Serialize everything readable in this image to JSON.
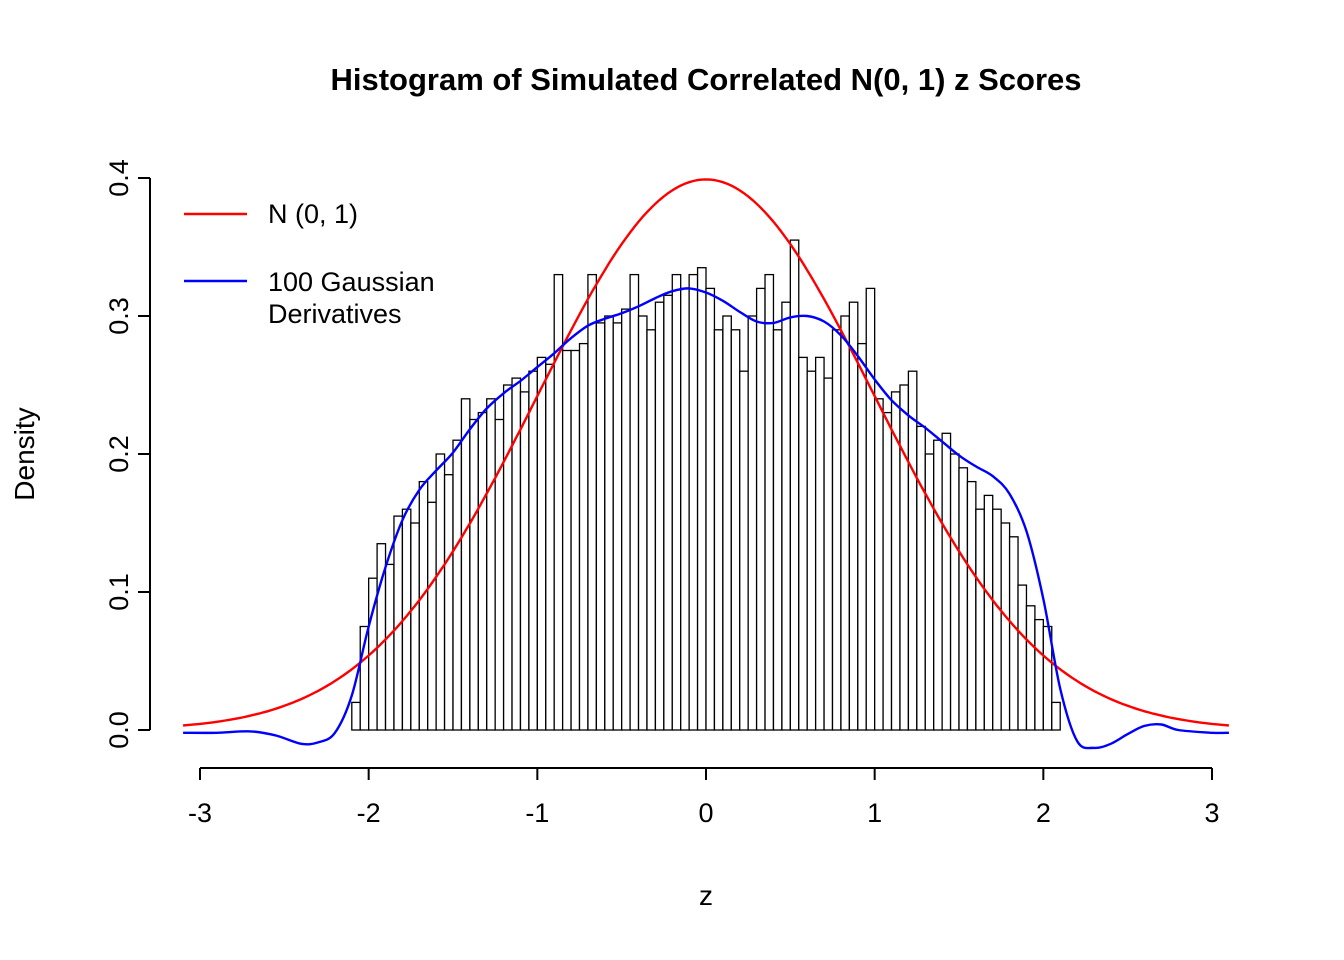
{
  "chart_data": {
    "type": "histogram",
    "title": "Histogram of Simulated Correlated N(0, 1) z Scores",
    "xlabel": "z",
    "ylabel": "Density",
    "xlim": [
      -3.1,
      3.1
    ],
    "ylim": [
      0.0,
      0.4
    ],
    "background_color": "#FFFFFF",
    "grid": false,
    "legend_position": "top-left",
    "x_ticks": {
      "values": [
        -3,
        -2,
        -1,
        0,
        1,
        2,
        3
      ],
      "labels": [
        "-3",
        "-2",
        "-1",
        "0",
        "1",
        "2",
        "3"
      ]
    },
    "y_ticks": {
      "values": [
        0.0,
        0.1,
        0.2,
        0.3,
        0.4
      ],
      "labels": [
        "0.0",
        "0.1",
        "0.2",
        "0.3",
        "0.4"
      ]
    },
    "histogram": {
      "bin_start": -2.1,
      "bin_width": 0.05,
      "bar_fill": "#FFFFFF",
      "bar_stroke": "#000000",
      "densities": [
        0.02,
        0.075,
        0.11,
        0.135,
        0.12,
        0.155,
        0.16,
        0.15,
        0.18,
        0.165,
        0.2,
        0.185,
        0.21,
        0.24,
        0.225,
        0.23,
        0.24,
        0.225,
        0.25,
        0.255,
        0.245,
        0.26,
        0.27,
        0.265,
        0.33,
        0.275,
        0.275,
        0.28,
        0.33,
        0.295,
        0.3,
        0.295,
        0.305,
        0.33,
        0.3,
        0.29,
        0.31,
        0.315,
        0.33,
        0.32,
        0.33,
        0.335,
        0.32,
        0.29,
        0.3,
        0.29,
        0.26,
        0.3,
        0.32,
        0.33,
        0.29,
        0.31,
        0.355,
        0.27,
        0.26,
        0.27,
        0.255,
        0.29,
        0.3,
        0.31,
        0.28,
        0.32,
        0.24,
        0.23,
        0.245,
        0.25,
        0.26,
        0.22,
        0.2,
        0.21,
        0.215,
        0.2,
        0.19,
        0.18,
        0.16,
        0.17,
        0.16,
        0.15,
        0.14,
        0.105,
        0.09,
        0.08,
        0.075,
        0.02
      ]
    },
    "normal_curve": {
      "label": "N (0, 1)",
      "mean": 0,
      "sd": 1,
      "color": "#FF0000"
    },
    "gd_curve": {
      "label": "100 Gaussian",
      "label2": "Derivatives",
      "color": "#0000FF",
      "points": [
        [
          -3.1,
          -0.002
        ],
        [
          -2.9,
          -0.002
        ],
        [
          -2.7,
          -0.001
        ],
        [
          -2.55,
          -0.004
        ],
        [
          -2.4,
          -0.01
        ],
        [
          -2.3,
          -0.009
        ],
        [
          -2.2,
          -0.002
        ],
        [
          -2.1,
          0.025
        ],
        [
          -2.0,
          0.075
        ],
        [
          -1.9,
          0.118
        ],
        [
          -1.8,
          0.152
        ],
        [
          -1.7,
          0.174
        ],
        [
          -1.6,
          0.188
        ],
        [
          -1.5,
          0.201
        ],
        [
          -1.4,
          0.218
        ],
        [
          -1.3,
          0.233
        ],
        [
          -1.2,
          0.244
        ],
        [
          -1.1,
          0.253
        ],
        [
          -1.0,
          0.263
        ],
        [
          -0.9,
          0.273
        ],
        [
          -0.8,
          0.284
        ],
        [
          -0.7,
          0.293
        ],
        [
          -0.6,
          0.298
        ],
        [
          -0.5,
          0.302
        ],
        [
          -0.4,
          0.307
        ],
        [
          -0.3,
          0.313
        ],
        [
          -0.2,
          0.318
        ],
        [
          -0.1,
          0.32
        ],
        [
          0.0,
          0.317
        ],
        [
          0.1,
          0.311
        ],
        [
          0.2,
          0.303
        ],
        [
          0.3,
          0.296
        ],
        [
          0.4,
          0.295
        ],
        [
          0.5,
          0.299
        ],
        [
          0.6,
          0.3
        ],
        [
          0.7,
          0.296
        ],
        [
          0.8,
          0.286
        ],
        [
          0.9,
          0.271
        ],
        [
          1.0,
          0.254
        ],
        [
          1.1,
          0.239
        ],
        [
          1.2,
          0.228
        ],
        [
          1.3,
          0.219
        ],
        [
          1.4,
          0.209
        ],
        [
          1.5,
          0.199
        ],
        [
          1.6,
          0.191
        ],
        [
          1.7,
          0.184
        ],
        [
          1.8,
          0.171
        ],
        [
          1.9,
          0.144
        ],
        [
          2.0,
          0.095
        ],
        [
          2.1,
          0.03
        ],
        [
          2.2,
          -0.008
        ],
        [
          2.3,
          -0.013
        ],
        [
          2.4,
          -0.01
        ],
        [
          2.5,
          -0.003
        ],
        [
          2.6,
          0.003
        ],
        [
          2.7,
          0.004
        ],
        [
          2.8,
          0.0
        ],
        [
          3.0,
          -0.002
        ],
        [
          3.1,
          -0.002
        ]
      ]
    }
  }
}
